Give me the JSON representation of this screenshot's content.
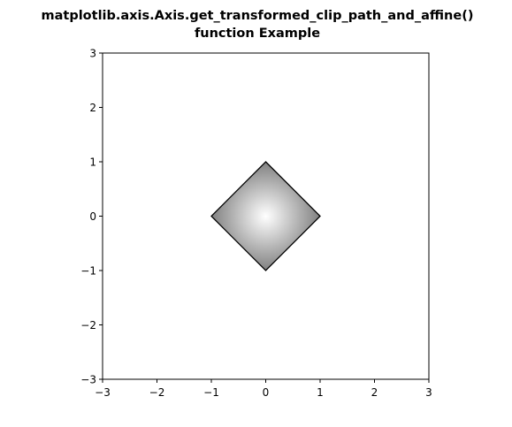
{
  "chart_data": {
    "type": "image",
    "title_lines": [
      "matplotlib.axis.Axis.get_transformed_clip_path_and_affine()",
      "function Example"
    ],
    "xlabel": "",
    "ylabel": "",
    "xlim": [
      -3,
      3
    ],
    "ylim": [
      -3,
      3
    ],
    "xticks": [
      -3,
      -2,
      -1,
      0,
      1,
      2,
      3
    ],
    "yticks": [
      -3,
      -2,
      -1,
      0,
      1,
      2,
      3
    ],
    "xtick_labels": [
      "−3",
      "−2",
      "−1",
      "0",
      "1",
      "2",
      "3"
    ],
    "ytick_labels": [
      "−3",
      "−2",
      "−1",
      "0",
      "1",
      "2",
      "3"
    ],
    "grid": false,
    "clip_path": {
      "shape": "diamond",
      "vertices": [
        [
          0,
          1
        ],
        [
          1,
          0
        ],
        [
          0,
          -1
        ],
        [
          -1,
          0
        ]
      ],
      "edge_color": "#000000"
    },
    "image_fill": {
      "description_type": "radial-gradient",
      "center": [
        0,
        0
      ],
      "center_color": "#ffffff",
      "edge_color": "#808080"
    }
  }
}
